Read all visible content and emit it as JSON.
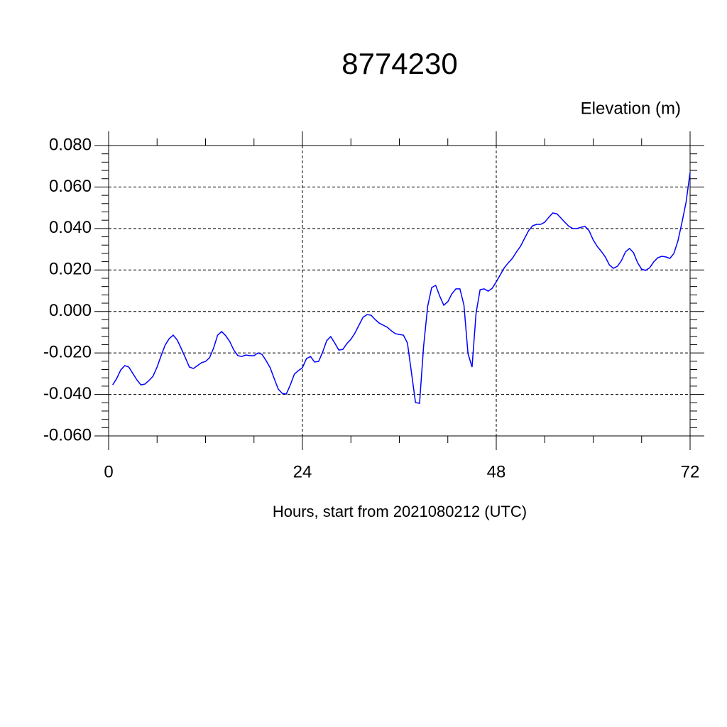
{
  "chart_data": {
    "type": "line",
    "title": "8774230",
    "ylabel": "Elevation (m)",
    "xlabel": "Hours, start from 2021080212 (UTC)",
    "x": [
      0.5,
      1,
      1.5,
      2,
      2.5,
      3,
      3.5,
      4,
      4.5,
      5,
      5.5,
      6,
      6.5,
      7,
      7.5,
      8,
      8.5,
      9,
      9.5,
      10,
      10.5,
      11,
      11.5,
      12,
      12.5,
      13,
      13.5,
      14,
      14.5,
      15,
      15.5,
      16,
      16.5,
      17,
      17.5,
      18,
      18.5,
      19,
      19.5,
      20,
      20.5,
      21,
      21.5,
      22,
      22.5,
      23,
      23.5,
      24,
      24.5,
      25,
      25.5,
      26,
      26.5,
      27,
      27.5,
      28,
      28.5,
      29,
      29.5,
      30,
      30.5,
      31,
      31.5,
      32,
      32.5,
      33,
      33.5,
      34,
      34.5,
      35,
      35.5,
      36,
      36.5,
      37,
      37.5,
      38,
      38.5,
      39,
      39.5,
      40,
      40.5,
      41,
      41.5,
      42,
      42.5,
      43,
      43.5,
      44,
      44.5,
      45,
      45.5,
      46,
      46.5,
      47,
      47.5,
      48,
      48.5,
      49,
      49.5,
      50,
      50.5,
      51,
      51.5,
      52,
      52.5,
      53,
      53.5,
      54,
      54.5,
      55,
      55.5,
      56,
      56.5,
      57,
      57.5,
      58,
      58.5,
      59,
      59.5,
      60,
      60.5,
      61,
      61.5,
      62,
      62.5,
      63,
      63.5,
      64,
      64.5,
      65,
      65.5,
      66,
      66.5,
      67,
      67.5,
      68,
      68.5,
      69,
      69.5,
      70,
      70.5,
      71,
      71.5,
      72
    ],
    "series": [
      {
        "name": "Elevation",
        "color": "#0000ff",
        "values": [
          -0.0354,
          -0.0323,
          -0.0282,
          -0.0261,
          -0.0268,
          -0.0299,
          -0.033,
          -0.0354,
          -0.035,
          -0.0333,
          -0.0312,
          -0.0268,
          -0.0213,
          -0.0162,
          -0.0131,
          -0.0114,
          -0.0138,
          -0.0179,
          -0.0223,
          -0.0268,
          -0.0275,
          -0.0261,
          -0.0247,
          -0.0241,
          -0.0223,
          -0.0176,
          -0.0114,
          -0.0097,
          -0.0117,
          -0.0145,
          -0.0186,
          -0.0213,
          -0.0217,
          -0.021,
          -0.0213,
          -0.0213,
          -0.02,
          -0.0207,
          -0.0237,
          -0.0271,
          -0.0323,
          -0.0374,
          -0.0395,
          -0.0398,
          -0.0354,
          -0.0302,
          -0.0285,
          -0.0271,
          -0.0227,
          -0.0217,
          -0.0244,
          -0.0241,
          -0.0196,
          -0.0141,
          -0.0121,
          -0.0152,
          -0.0186,
          -0.0183,
          -0.0155,
          -0.0134,
          -0.0104,
          -0.0066,
          -0.0028,
          -0.0015,
          -0.0018,
          -0.0039,
          -0.0056,
          -0.0066,
          -0.0076,
          -0.0093,
          -0.0107,
          -0.0111,
          -0.0114,
          -0.0152,
          -0.0295,
          -0.0439,
          -0.0443,
          -0.0169,
          0.0023,
          0.0115,
          0.0126,
          0.0074,
          0.003,
          0.0047,
          0.0085,
          0.0109,
          0.0109,
          0.003,
          -0.0203,
          -0.0268,
          -0.0008,
          0.0105,
          0.0109,
          0.0098,
          0.0112,
          0.0143,
          0.0177,
          0.0211,
          0.0235,
          0.0256,
          0.0287,
          0.0314,
          0.0352,
          0.0389,
          0.0413,
          0.042,
          0.042,
          0.043,
          0.0454,
          0.0475,
          0.0471,
          0.0451,
          0.043,
          0.041,
          0.04,
          0.04,
          0.0406,
          0.041,
          0.0389,
          0.0345,
          0.0314,
          0.029,
          0.0263,
          0.0225,
          0.0208,
          0.0218,
          0.0245,
          0.0287,
          0.0304,
          0.0283,
          0.0235,
          0.0204,
          0.0198,
          0.0211,
          0.0239,
          0.0259,
          0.0266,
          0.0263,
          0.0256,
          0.028,
          0.0341,
          0.043,
          0.0526,
          0.067
        ]
      }
    ],
    "xlim": [
      0,
      72
    ],
    "xticks": [
      0,
      24,
      48,
      72
    ],
    "ylim": [
      -0.06,
      0.08
    ],
    "yticks": [
      {
        "value": -0.06,
        "label": "-0.060"
      },
      {
        "value": -0.04,
        "label": "-0.040"
      },
      {
        "value": -0.02,
        "label": "-0.020"
      },
      {
        "value": 0,
        "label": "0.000"
      },
      {
        "value": 0.02,
        "label": "0.020"
      },
      {
        "value": 0.04,
        "label": "0.040"
      },
      {
        "value": 0.06,
        "label": "0.060"
      },
      {
        "value": 0.08,
        "label": "0.080"
      }
    ],
    "grid": true
  }
}
